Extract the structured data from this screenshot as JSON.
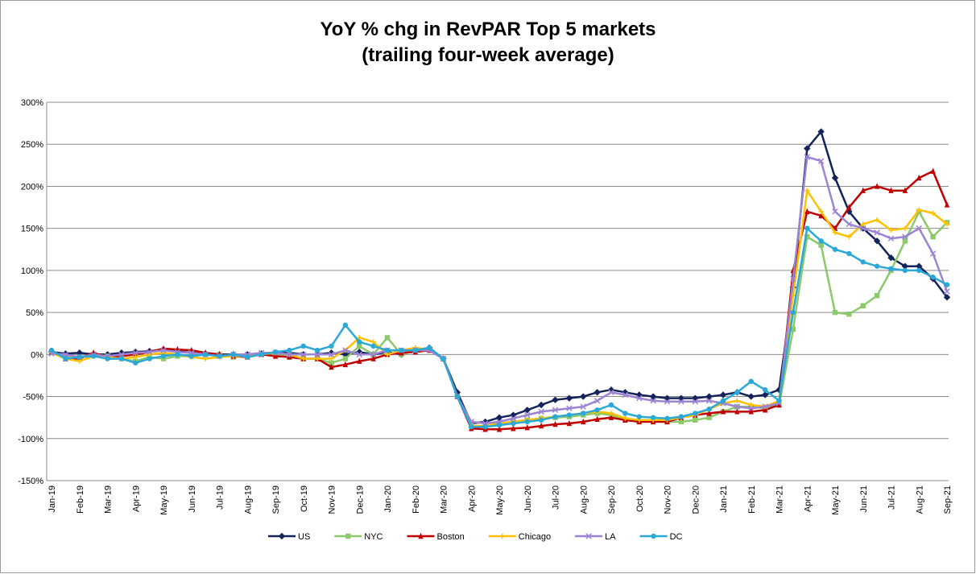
{
  "chart_data": {
    "type": "line",
    "title": "YoY % chg in RevPAR Top 5 markets",
    "subtitle": "(trailing four-week average)",
    "categories": [
      "Jan-19",
      null,
      "Feb-19",
      null,
      "Mar-19",
      null,
      "Apr-19",
      null,
      "May-19",
      null,
      "Jun-19",
      null,
      "Jul-19",
      null,
      "Aug-19",
      null,
      "Sep-19",
      null,
      "Oct-19",
      null,
      "Nov-19",
      null,
      "Dec-19",
      null,
      "Jan-20",
      null,
      "Feb-20",
      null,
      "Mar-20",
      null,
      "Apr-20",
      null,
      "May-20",
      null,
      "Jun-20",
      null,
      "Jul-20",
      null,
      "Aug-20",
      null,
      "Sep-20",
      null,
      "Oct-20",
      null,
      "Nov-20",
      null,
      "Dec-20",
      null,
      "Jan-21",
      null,
      "Feb-21",
      null,
      "Mar-21",
      null,
      "Apr-21",
      null,
      "May-21",
      null,
      "Jun-21",
      null,
      "Jul-21",
      null,
      "Aug-21",
      null,
      "Sep-21"
    ],
    "series": [
      {
        "name": "US",
        "color": "#14245a",
        "marker": "diamond",
        "values": [
          3,
          1,
          2,
          0,
          0,
          2,
          3,
          4,
          6,
          4,
          2,
          1,
          0,
          0,
          0,
          1,
          2,
          2,
          0,
          0,
          2,
          0,
          3,
          0,
          3,
          0,
          5,
          8,
          -5,
          -45,
          -82,
          -80,
          -75,
          -72,
          -66,
          -60,
          -54,
          -52,
          -50,
          -45,
          -42,
          -45,
          -48,
          -50,
          -52,
          -52,
          -52,
          -50,
          -48,
          -45,
          -50,
          -48,
          -42,
          80,
          245,
          265,
          210,
          170,
          150,
          135,
          115,
          105,
          105,
          90,
          68
        ]
      },
      {
        "name": "NYC",
        "color": "#8cc96a",
        "marker": "square",
        "values": [
          3,
          -2,
          -3,
          0,
          -2,
          -5,
          -8,
          -3,
          -5,
          -2,
          -2,
          0,
          0,
          -3,
          -2,
          0,
          0,
          -3,
          -5,
          -5,
          -10,
          -5,
          10,
          0,
          20,
          0,
          5,
          5,
          -5,
          -50,
          -85,
          -85,
          -82,
          -80,
          -78,
          -76,
          -75,
          -74,
          -72,
          -70,
          -72,
          -78,
          -80,
          -80,
          -80,
          -80,
          -78,
          -75,
          -68,
          -62,
          -62,
          -64,
          -60,
          30,
          140,
          130,
          50,
          48,
          58,
          70,
          100,
          135,
          170,
          140,
          157
        ]
      },
      {
        "name": "Boston",
        "color": "#c00000",
        "marker": "triangle",
        "values": [
          3,
          -5,
          -5,
          2,
          -3,
          -2,
          0,
          3,
          7,
          6,
          5,
          2,
          0,
          -2,
          -3,
          0,
          -2,
          -3,
          -5,
          -5,
          -15,
          -12,
          -8,
          -5,
          0,
          2,
          3,
          5,
          -5,
          -50,
          -88,
          -89,
          -89,
          -88,
          -87,
          -85,
          -83,
          -82,
          -80,
          -77,
          -75,
          -78,
          -80,
          -80,
          -80,
          -75,
          -72,
          -70,
          -68,
          -68,
          -68,
          -66,
          -60,
          100,
          170,
          165,
          150,
          175,
          195,
          200,
          195,
          195,
          210,
          218,
          178
        ]
      },
      {
        "name": "Chicago",
        "color": "#ffc000",
        "marker": "cross",
        "values": [
          2,
          -5,
          -8,
          -2,
          -3,
          -5,
          -3,
          0,
          2,
          0,
          -3,
          -5,
          -3,
          -2,
          -2,
          0,
          2,
          0,
          -5,
          -5,
          -5,
          5,
          20,
          15,
          0,
          5,
          8,
          6,
          -5,
          -50,
          -85,
          -85,
          -82,
          -80,
          -78,
          -76,
          -74,
          -72,
          -70,
          -68,
          -70,
          -76,
          -78,
          -78,
          -78,
          -75,
          -72,
          -65,
          -58,
          -55,
          -60,
          -62,
          -55,
          70,
          195,
          170,
          145,
          140,
          155,
          160,
          148,
          150,
          172,
          168,
          155
        ]
      },
      {
        "name": "LA",
        "color": "#9b84d4",
        "marker": "x",
        "values": [
          1,
          0,
          -3,
          0,
          -2,
          0,
          2,
          3,
          5,
          3,
          2,
          0,
          -2,
          0,
          0,
          2,
          2,
          0,
          0,
          0,
          0,
          5,
          0,
          0,
          5,
          5,
          5,
          5,
          -5,
          -50,
          -80,
          -82,
          -80,
          -76,
          -72,
          -68,
          -66,
          -64,
          -62,
          -55,
          -45,
          -48,
          -52,
          -55,
          -56,
          -56,
          -56,
          -55,
          -58,
          -62,
          -64,
          -62,
          -58,
          90,
          235,
          230,
          170,
          155,
          150,
          145,
          138,
          140,
          150,
          120,
          75
        ]
      },
      {
        "name": "DC",
        "color": "#2aa8d8",
        "marker": "circle",
        "values": [
          5,
          -5,
          -3,
          -2,
          -5,
          -5,
          -10,
          -5,
          -2,
          0,
          -2,
          0,
          -2,
          0,
          -3,
          0,
          3,
          5,
          10,
          5,
          10,
          35,
          15,
          10,
          5,
          5,
          5,
          8,
          -5,
          -50,
          -86,
          -86,
          -84,
          -82,
          -80,
          -78,
          -74,
          -72,
          -70,
          -66,
          -60,
          -70,
          -74,
          -75,
          -76,
          -74,
          -70,
          -65,
          -55,
          -45,
          -32,
          -42,
          -55,
          50,
          150,
          135,
          125,
          120,
          110,
          105,
          102,
          100,
          100,
          92,
          83
        ]
      }
    ],
    "ylim": [
      -150,
      300
    ],
    "yticks": [
      {
        "value": -150,
        "label": "-150%"
      },
      {
        "value": -100,
        "label": "-100%"
      },
      {
        "value": -50,
        "label": "-50%"
      },
      {
        "value": 0,
        "label": "0%"
      },
      {
        "value": 50,
        "label": "50%"
      },
      {
        "value": 100,
        "label": "100%"
      },
      {
        "value": 150,
        "label": "150%"
      },
      {
        "value": 200,
        "label": "200%"
      },
      {
        "value": 250,
        "label": "250%"
      },
      {
        "value": 300,
        "label": "300%"
      }
    ],
    "grid": true,
    "legend": "bottom"
  }
}
